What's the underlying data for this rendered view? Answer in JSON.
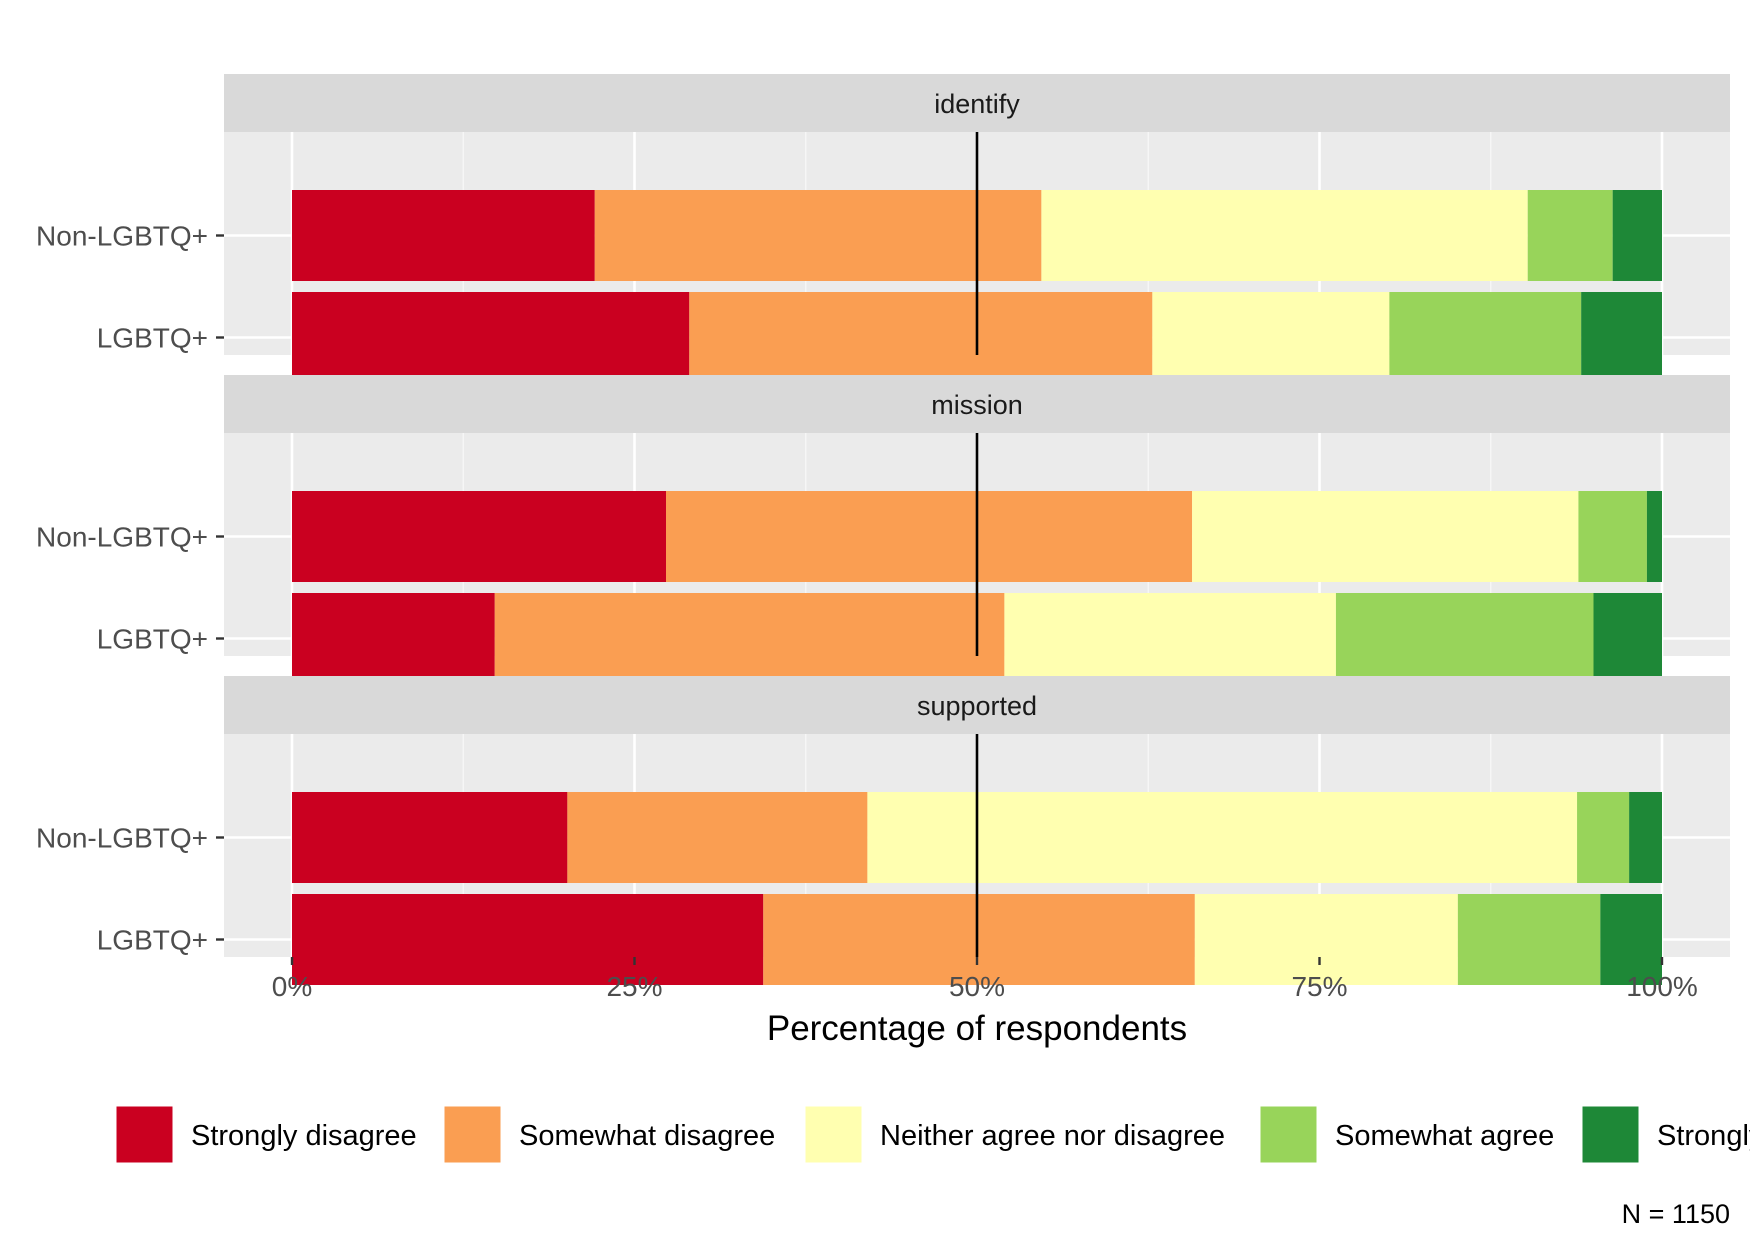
{
  "chart_data": {
    "type": "bar",
    "orientation": "horizontal",
    "stacked": true,
    "xlabel": "Percentage of respondents",
    "x_ticks": [
      "0%",
      "25%",
      "50%",
      "75%",
      "100%"
    ],
    "xlim": [
      0,
      100
    ],
    "grid": true,
    "legend_position": "bottom",
    "caption": "N = 1150",
    "categories": [
      "Non-LGBTQ+",
      "LGBTQ+"
    ],
    "levels": [
      {
        "name": "Strongly disagree",
        "color": "#ca0020"
      },
      {
        "name": "Somewhat disagree",
        "color": "#fa9e52"
      },
      {
        "name": "Neither agree nor disagree",
        "color": "#ffffb0"
      },
      {
        "name": "Somewhat agree",
        "color": "#98d45a"
      },
      {
        "name": "Strongly agree",
        "color": "#1e8837"
      }
    ],
    "facets": [
      {
        "label": "identify",
        "rows": [
          {
            "group": "Non-LGBTQ+",
            "values": [
              22.1,
              32.6,
              35.5,
              6.2,
              3.6
            ]
          },
          {
            "group": "LGBTQ+",
            "values": [
              29.0,
              33.8,
              17.3,
              14.0,
              5.9
            ]
          }
        ]
      },
      {
        "label": "mission",
        "rows": [
          {
            "group": "Non-LGBTQ+",
            "values": [
              27.3,
              38.4,
              28.2,
              5.0,
              1.1
            ]
          },
          {
            "group": "LGBTQ+",
            "values": [
              14.8,
              37.2,
              24.2,
              18.8,
              5.0
            ]
          }
        ]
      },
      {
        "label": "supported",
        "rows": [
          {
            "group": "Non-LGBTQ+",
            "values": [
              20.1,
              21.9,
              51.8,
              3.8,
              2.4
            ]
          },
          {
            "group": "LGBTQ+",
            "values": [
              34.4,
              31.5,
              19.2,
              10.4,
              4.5
            ]
          }
        ]
      }
    ]
  }
}
